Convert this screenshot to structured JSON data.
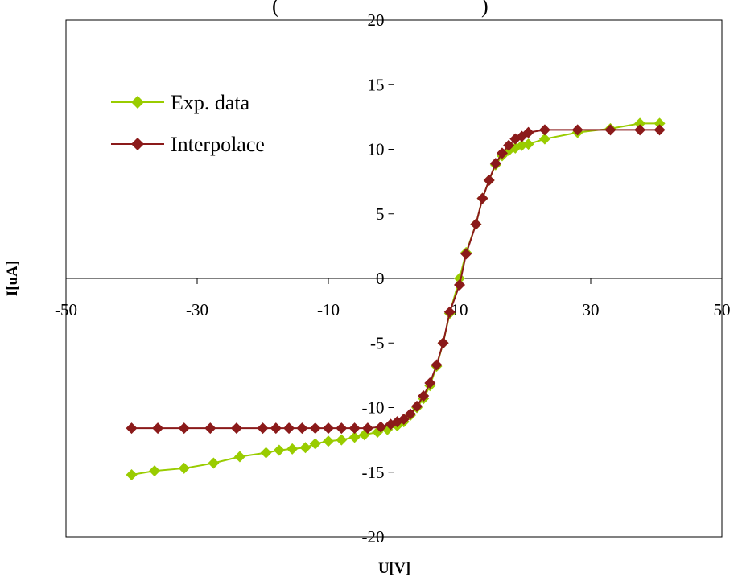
{
  "chart_data": {
    "type": "line",
    "title_fragment_left": "(",
    "title_fragment_right": ")",
    "xlabel": "U[V]",
    "ylabel": "I[uA]",
    "xlim": [
      -50,
      50
    ],
    "ylim": [
      -20,
      20
    ],
    "x_ticks": [
      -50,
      -30,
      -10,
      10,
      30,
      50
    ],
    "y_ticks": [
      20,
      15,
      10,
      5,
      0,
      -5,
      -10,
      -15,
      -20
    ],
    "x_tick_labels": [
      "-50",
      "-30",
      "-10",
      "10",
      "30",
      "50"
    ],
    "y_tick_labels": [
      "20",
      "15",
      "10",
      "5",
      "0",
      "-5",
      "-10",
      "-15",
      "-20"
    ],
    "grid": false,
    "legend_position": "top-left",
    "series": [
      {
        "name": "Exp. data",
        "color": "#99CC00",
        "marker": "diamond",
        "points": [
          [
            -40,
            -15.2
          ],
          [
            -36.5,
            -14.9
          ],
          [
            -32,
            -14.7
          ],
          [
            -27.5,
            -14.3
          ],
          [
            -23.5,
            -13.8
          ],
          [
            -19.5,
            -13.5
          ],
          [
            -17.5,
            -13.3
          ],
          [
            -15.5,
            -13.2
          ],
          [
            -13.5,
            -13.1
          ],
          [
            -12,
            -12.8
          ],
          [
            -10,
            -12.6
          ],
          [
            -8,
            -12.5
          ],
          [
            -6,
            -12.3
          ],
          [
            -4.5,
            -12.1
          ],
          [
            -2.5,
            -11.9
          ],
          [
            -1,
            -11.7
          ],
          [
            0.5,
            -11.4
          ],
          [
            1.5,
            -11.1
          ],
          [
            2.5,
            -10.6
          ],
          [
            3.5,
            -10.0
          ],
          [
            4.5,
            -9.3
          ],
          [
            5.5,
            -8.3
          ],
          [
            6.5,
            -6.8
          ],
          [
            7.5,
            -5.0
          ],
          [
            8.5,
            -2.7
          ],
          [
            10,
            0.0
          ],
          [
            11,
            2.0
          ],
          [
            12.5,
            4.2
          ],
          [
            13.5,
            6.2
          ],
          [
            14.5,
            7.6
          ],
          [
            15.5,
            8.8
          ],
          [
            16.5,
            9.5
          ],
          [
            17.5,
            9.9
          ],
          [
            18.5,
            10.1
          ],
          [
            19.5,
            10.3
          ],
          [
            20.5,
            10.4
          ],
          [
            23,
            10.8
          ],
          [
            28,
            11.3
          ],
          [
            33,
            11.6
          ],
          [
            37.5,
            12.0
          ],
          [
            40.5,
            12.0
          ]
        ]
      },
      {
        "name": "Interpolace",
        "color": "#8B1A1A",
        "marker": "diamond",
        "points": [
          [
            -40,
            -11.6
          ],
          [
            -36,
            -11.6
          ],
          [
            -32,
            -11.6
          ],
          [
            -28,
            -11.6
          ],
          [
            -24,
            -11.6
          ],
          [
            -20,
            -11.6
          ],
          [
            -18,
            -11.6
          ],
          [
            -16,
            -11.6
          ],
          [
            -14,
            -11.6
          ],
          [
            -12,
            -11.6
          ],
          [
            -10,
            -11.6
          ],
          [
            -8,
            -11.6
          ],
          [
            -6,
            -11.6
          ],
          [
            -4,
            -11.6
          ],
          [
            -2,
            -11.5
          ],
          [
            -0.5,
            -11.3
          ],
          [
            0.5,
            -11.1
          ],
          [
            1.5,
            -10.9
          ],
          [
            2.5,
            -10.5
          ],
          [
            3.5,
            -9.9
          ],
          [
            4.5,
            -9.1
          ],
          [
            5.5,
            -8.1
          ],
          [
            6.5,
            -6.7
          ],
          [
            7.5,
            -5.0
          ],
          [
            8.5,
            -2.6
          ],
          [
            10,
            -0.5
          ],
          [
            11,
            1.9
          ],
          [
            12.5,
            4.2
          ],
          [
            13.5,
            6.2
          ],
          [
            14.5,
            7.6
          ],
          [
            15.5,
            8.9
          ],
          [
            16.5,
            9.7
          ],
          [
            17.5,
            10.3
          ],
          [
            18.5,
            10.8
          ],
          [
            19.5,
            11.0
          ],
          [
            20.5,
            11.3
          ],
          [
            23,
            11.5
          ],
          [
            28,
            11.5
          ],
          [
            33,
            11.5
          ],
          [
            37.5,
            11.5
          ],
          [
            40.5,
            11.5
          ]
        ]
      }
    ]
  }
}
